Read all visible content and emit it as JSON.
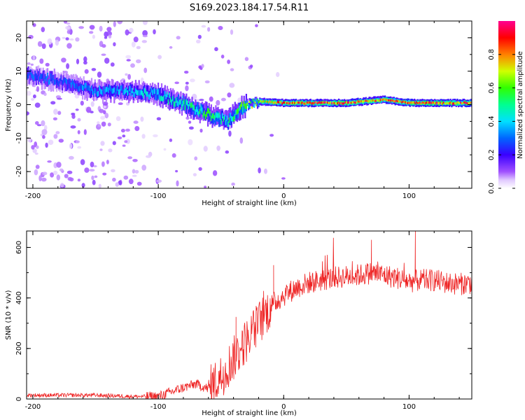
{
  "title": "S169.2023.184.17.54.R11",
  "chart_data": [
    {
      "type": "heatmap",
      "title": "S169.2023.184.17.54.R11",
      "xlabel": "Height of straight line (km)",
      "ylabel": "Frequency (Hz)",
      "xlim": [
        -205,
        150
      ],
      "ylim": [
        -25,
        25
      ],
      "xticks": [
        -200,
        -100,
        0,
        100
      ],
      "yticks": [
        -20,
        -10,
        0,
        10,
        20
      ],
      "colorbar": {
        "label": "Normalized spectral amplitude",
        "range": [
          0,
          1
        ],
        "ticks": [
          0.0,
          0.2,
          0.4,
          0.6,
          0.8
        ],
        "colors": [
          "#ffffff",
          "#c890ff",
          "#7a00ff",
          "#1e00ff",
          "#00a8ff",
          "#00ffd0",
          "#00ff40",
          "#b8ff00",
          "#ff9000",
          "#ff0000",
          "#ff0090"
        ]
      },
      "ridge": {
        "description_points_x": [
          -205,
          -180,
          -150,
          -120,
          -100,
          -80,
          -60,
          -45,
          -35,
          -20,
          0,
          50,
          80,
          100,
          150
        ],
        "center_freq_hz": [
          9,
          7,
          4,
          4,
          3,
          0,
          -3,
          -5,
          -1,
          1,
          0.5,
          0.5,
          1.5,
          0.5,
          0.5
        ],
        "peak_amplitude": [
          0.3,
          0.3,
          0.35,
          0.4,
          0.45,
          0.5,
          0.55,
          0.5,
          0.6,
          0.7,
          0.9,
          0.9,
          0.85,
          0.9,
          0.9
        ]
      }
    },
    {
      "type": "line",
      "xlabel": "Height of straight line (km)",
      "ylabel": "SNR (10 * v/v)",
      "xlim": [
        -205,
        150
      ],
      "ylim": [
        0,
        665
      ],
      "xticks": [
        -200,
        -100,
        0,
        100
      ],
      "yticks": [
        0,
        200,
        400,
        600
      ],
      "color": "#ee2222",
      "series": [
        {
          "x": [
            -205,
            -180,
            -150,
            -120,
            -100,
            -80,
            -70,
            -60,
            -50,
            -40,
            -30,
            -20,
            -10,
            0,
            10,
            20,
            30,
            40,
            50,
            60,
            70,
            80,
            90,
            100,
            110,
            120,
            130,
            140,
            150
          ],
          "values": [
            15,
            15,
            15,
            10,
            10,
            45,
            60,
            40,
            90,
            160,
            230,
            300,
            370,
            410,
            440,
            460,
            470,
            480,
            485,
            490,
            500,
            490,
            480,
            465,
            470,
            470,
            460,
            455,
            460
          ]
        }
      ],
      "annotations": {
        "spike_peaks": [
          {
            "x": -38,
            "y": 325
          },
          {
            "x": -8,
            "y": 530
          },
          {
            "x": 70,
            "y": 630
          },
          {
            "x": 105,
            "y": 665
          }
        ]
      }
    }
  ]
}
